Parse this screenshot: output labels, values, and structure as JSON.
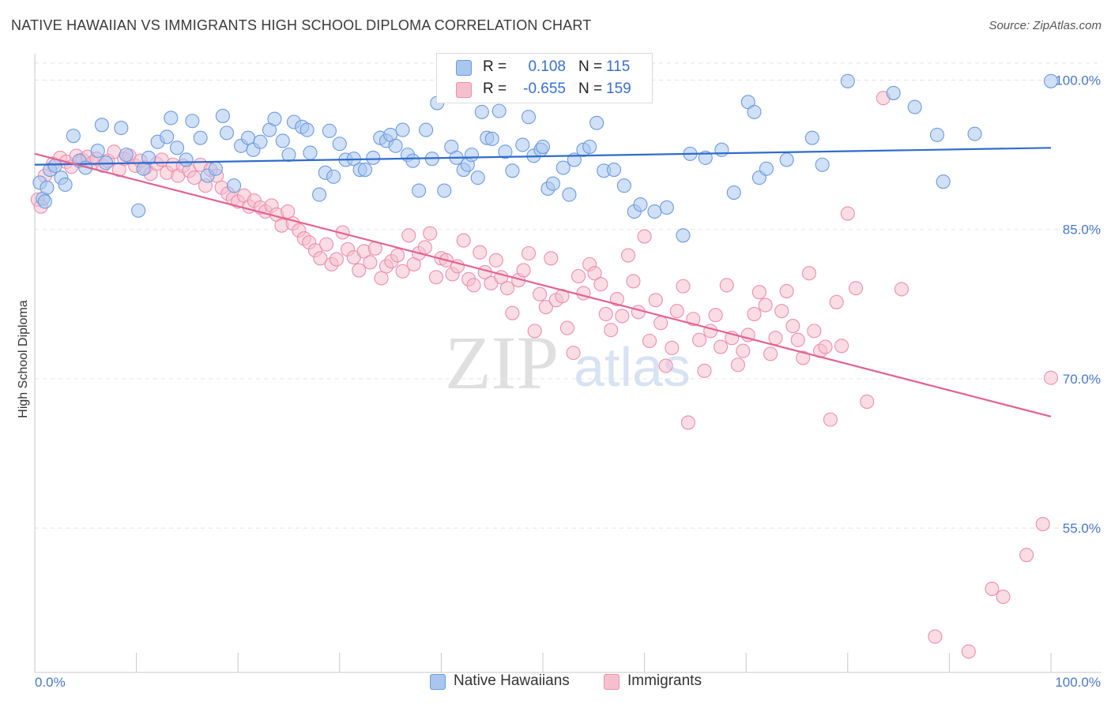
{
  "header": {
    "title": "NATIVE HAWAIIAN VS IMMIGRANTS HIGH SCHOOL DIPLOMA CORRELATION CHART",
    "source": "Source: ZipAtlas.com"
  },
  "watermark": {
    "zip": "ZIP",
    "atlas": "atlas"
  },
  "legend_top": {
    "rows": [
      {
        "r_key": "R =",
        "r_value": "0.108",
        "n_key": "N =",
        "n_value": "115"
      },
      {
        "r_key": "R =",
        "r_value": "-0.655",
        "n_key": "N =",
        "n_value": "159"
      }
    ]
  },
  "legend_bottom": {
    "items": [
      "Native Hawaiians",
      "Immigrants"
    ]
  },
  "colors": {
    "blue_fill": "#a9c6ee",
    "blue_stroke": "#6d9be0",
    "blue_line": "#2f6ccc",
    "pink_fill": "#f6bfd0",
    "pink_stroke": "#ec8fae",
    "pink_line": "#e2638f",
    "tick_label": "#4a78c4",
    "grid": "#e3e3e3"
  },
  "chart_data": {
    "type": "scatter",
    "title": "NATIVE HAWAIIAN VS IMMIGRANTS HIGH SCHOOL DIPLOMA CORRELATION CHART",
    "xlabel": "",
    "ylabel": "High School Diploma",
    "xlim": [
      0,
      100
    ],
    "ylim": [
      40.5,
      102.5
    ],
    "x_tick_labels": [
      "0.0%",
      "100.0%"
    ],
    "y_ticks": [
      100,
      85,
      70,
      55
    ],
    "y_tick_labels": [
      "100.0%",
      "85.0%",
      "70.0%",
      "55.0%"
    ],
    "grid": "horizontal dashed",
    "legend": "top-center and bottom",
    "series": [
      {
        "name": "Native Hawaiians",
        "r": 0.108,
        "n": 115,
        "trend": {
          "x": [
            0,
            100
          ],
          "y": [
            91.5,
            93.2
          ]
        },
        "points": [
          [
            0.5,
            89.7
          ],
          [
            0.8,
            88.1
          ],
          [
            1.0,
            87.8
          ],
          [
            1.2,
            89.2
          ],
          [
            1.5,
            91.0
          ],
          [
            2.0,
            91.4
          ],
          [
            2.6,
            90.2
          ],
          [
            3.0,
            89.5
          ],
          [
            3.8,
            94.4
          ],
          [
            4.4,
            91.9
          ],
          [
            5.0,
            91.2
          ],
          [
            6.2,
            92.9
          ],
          [
            6.6,
            95.5
          ],
          [
            7.0,
            91.7
          ],
          [
            8.5,
            95.2
          ],
          [
            9.0,
            92.5
          ],
          [
            10.2,
            86.9
          ],
          [
            10.7,
            91.1
          ],
          [
            11.2,
            92.2
          ],
          [
            12.1,
            93.8
          ],
          [
            13.0,
            94.3
          ],
          [
            13.4,
            96.2
          ],
          [
            14.0,
            93.2
          ],
          [
            14.9,
            92.0
          ],
          [
            15.5,
            95.9
          ],
          [
            16.3,
            94.2
          ],
          [
            17.0,
            90.4
          ],
          [
            17.8,
            91.1
          ],
          [
            18.5,
            96.4
          ],
          [
            18.9,
            94.7
          ],
          [
            19.6,
            89.4
          ],
          [
            20.3,
            93.4
          ],
          [
            21.0,
            94.2
          ],
          [
            21.5,
            93.0
          ],
          [
            22.2,
            93.8
          ],
          [
            23.1,
            95.0
          ],
          [
            23.6,
            96.1
          ],
          [
            24.4,
            93.9
          ],
          [
            25.0,
            92.5
          ],
          [
            25.5,
            95.8
          ],
          [
            26.3,
            95.3
          ],
          [
            26.8,
            95.0
          ],
          [
            27.1,
            92.7
          ],
          [
            28.0,
            88.5
          ],
          [
            28.6,
            90.7
          ],
          [
            29.0,
            94.9
          ],
          [
            29.4,
            90.3
          ],
          [
            30.0,
            93.6
          ],
          [
            30.6,
            92.0
          ],
          [
            31.4,
            92.1
          ],
          [
            32.0,
            91.0
          ],
          [
            32.5,
            91.0
          ],
          [
            33.3,
            92.2
          ],
          [
            34.0,
            94.2
          ],
          [
            34.6,
            93.9
          ],
          [
            35.0,
            94.5
          ],
          [
            35.5,
            93.4
          ],
          [
            36.2,
            95.0
          ],
          [
            36.7,
            92.5
          ],
          [
            37.2,
            91.9
          ],
          [
            37.8,
            88.9
          ],
          [
            38.5,
            95.0
          ],
          [
            39.1,
            92.1
          ],
          [
            39.6,
            97.7
          ],
          [
            40.3,
            88.9
          ],
          [
            41.0,
            93.3
          ],
          [
            41.5,
            92.2
          ],
          [
            42.2,
            91.0
          ],
          [
            42.6,
            91.5
          ],
          [
            43.0,
            92.5
          ],
          [
            43.6,
            90.2
          ],
          [
            44.0,
            96.8
          ],
          [
            44.5,
            94.2
          ],
          [
            45.0,
            94.1
          ],
          [
            45.7,
            96.9
          ],
          [
            46.3,
            92.8
          ],
          [
            47.0,
            90.9
          ],
          [
            48.0,
            93.5
          ],
          [
            48.6,
            96.3
          ],
          [
            49.1,
            92.4
          ],
          [
            49.8,
            93.0
          ],
          [
            50.0,
            93.3
          ],
          [
            50.5,
            89.1
          ],
          [
            51.0,
            89.6
          ],
          [
            52.0,
            91.2
          ],
          [
            52.6,
            88.5
          ],
          [
            53.1,
            92.0
          ],
          [
            54.0,
            93.0
          ],
          [
            54.6,
            93.3
          ],
          [
            55.3,
            95.7
          ],
          [
            56.0,
            90.9
          ],
          [
            57.0,
            91.0
          ],
          [
            58.0,
            89.4
          ],
          [
            59.0,
            86.8
          ],
          [
            59.6,
            87.5
          ],
          [
            61.0,
            86.8
          ],
          [
            62.2,
            87.2
          ],
          [
            63.8,
            84.4
          ],
          [
            64.5,
            92.6
          ],
          [
            66.0,
            92.2
          ],
          [
            67.6,
            93.0
          ],
          [
            68.8,
            88.7
          ],
          [
            70.2,
            97.8
          ],
          [
            70.8,
            96.8
          ],
          [
            71.3,
            90.2
          ],
          [
            72.0,
            91.1
          ],
          [
            74.0,
            92.0
          ],
          [
            76.5,
            94.2
          ],
          [
            77.5,
            91.5
          ],
          [
            80.0,
            99.9
          ],
          [
            84.5,
            98.7
          ],
          [
            86.6,
            97.3
          ],
          [
            88.8,
            94.5
          ],
          [
            89.4,
            89.8
          ],
          [
            92.5,
            94.6
          ],
          [
            100.0,
            99.9
          ]
        ]
      },
      {
        "name": "Immigrants",
        "r": -0.655,
        "n": 159,
        "trend": {
          "x": [
            0,
            100
          ],
          "y": [
            92.6,
            66.2
          ]
        },
        "points": [
          [
            0.3,
            88.0
          ],
          [
            0.6,
            87.3
          ],
          [
            1.0,
            90.4
          ],
          [
            1.8,
            91.6
          ],
          [
            2.5,
            92.2
          ],
          [
            3.1,
            91.8
          ],
          [
            3.6,
            91.3
          ],
          [
            4.1,
            92.4
          ],
          [
            4.7,
            92.0
          ],
          [
            5.2,
            92.3
          ],
          [
            5.7,
            91.7
          ],
          [
            6.1,
            92.1
          ],
          [
            6.7,
            91.4
          ],
          [
            7.2,
            91.9
          ],
          [
            7.8,
            92.8
          ],
          [
            8.3,
            91.0
          ],
          [
            8.8,
            92.1
          ],
          [
            9.3,
            92.4
          ],
          [
            9.9,
            91.4
          ],
          [
            10.4,
            91.9
          ],
          [
            10.9,
            91.2
          ],
          [
            11.4,
            90.6
          ],
          [
            12.0,
            91.6
          ],
          [
            12.5,
            92.0
          ],
          [
            13.0,
            90.7
          ],
          [
            13.6,
            91.5
          ],
          [
            14.1,
            90.4
          ],
          [
            14.6,
            91.4
          ],
          [
            15.2,
            90.9
          ],
          [
            15.7,
            90.2
          ],
          [
            16.3,
            91.5
          ],
          [
            16.8,
            89.4
          ],
          [
            17.3,
            91.0
          ],
          [
            17.9,
            90.4
          ],
          [
            18.4,
            89.2
          ],
          [
            19.0,
            88.6
          ],
          [
            19.5,
            88.1
          ],
          [
            20.0,
            87.8
          ],
          [
            20.6,
            88.4
          ],
          [
            21.1,
            87.3
          ],
          [
            21.6,
            87.9
          ],
          [
            22.2,
            87.2
          ],
          [
            22.7,
            86.8
          ],
          [
            23.3,
            87.4
          ],
          [
            23.8,
            86.5
          ],
          [
            24.3,
            85.4
          ],
          [
            24.9,
            86.8
          ],
          [
            25.4,
            85.6
          ],
          [
            26.0,
            84.9
          ],
          [
            26.5,
            84.1
          ],
          [
            27.0,
            83.7
          ],
          [
            27.6,
            82.9
          ],
          [
            28.1,
            82.1
          ],
          [
            28.7,
            83.5
          ],
          [
            29.2,
            81.5
          ],
          [
            29.7,
            82.0
          ],
          [
            30.3,
            84.7
          ],
          [
            30.8,
            83.0
          ],
          [
            31.4,
            82.2
          ],
          [
            31.9,
            80.9
          ],
          [
            32.4,
            82.8
          ],
          [
            33.0,
            81.7
          ],
          [
            33.5,
            83.1
          ],
          [
            34.1,
            80.1
          ],
          [
            34.6,
            81.3
          ],
          [
            35.1,
            81.8
          ],
          [
            35.7,
            82.4
          ],
          [
            36.2,
            80.8
          ],
          [
            36.8,
            84.4
          ],
          [
            37.3,
            81.5
          ],
          [
            37.8,
            82.6
          ],
          [
            38.4,
            83.2
          ],
          [
            38.9,
            84.6
          ],
          [
            39.5,
            80.2
          ],
          [
            40.0,
            82.1
          ],
          [
            40.5,
            81.9
          ],
          [
            41.1,
            80.5
          ],
          [
            41.6,
            81.3
          ],
          [
            42.2,
            83.9
          ],
          [
            42.7,
            80.0
          ],
          [
            43.2,
            79.4
          ],
          [
            43.8,
            82.7
          ],
          [
            44.3,
            80.7
          ],
          [
            44.9,
            79.6
          ],
          [
            45.4,
            81.9
          ],
          [
            45.9,
            80.2
          ],
          [
            46.5,
            79.1
          ],
          [
            47.0,
            76.6
          ],
          [
            47.6,
            79.9
          ],
          [
            48.1,
            80.9
          ],
          [
            48.6,
            82.6
          ],
          [
            49.2,
            74.8
          ],
          [
            49.7,
            78.5
          ],
          [
            50.3,
            77.2
          ],
          [
            50.8,
            82.1
          ],
          [
            51.3,
            77.9
          ],
          [
            51.9,
            78.3
          ],
          [
            52.4,
            75.1
          ],
          [
            53.0,
            72.6
          ],
          [
            53.5,
            80.3
          ],
          [
            54.0,
            78.6
          ],
          [
            54.6,
            81.5
          ],
          [
            55.1,
            80.6
          ],
          [
            55.7,
            79.5
          ],
          [
            56.2,
            76.5
          ],
          [
            56.7,
            74.9
          ],
          [
            57.3,
            78.0
          ],
          [
            57.8,
            76.3
          ],
          [
            58.4,
            82.4
          ],
          [
            58.9,
            79.8
          ],
          [
            59.4,
            76.7
          ],
          [
            60.0,
            84.3
          ],
          [
            60.5,
            73.8
          ],
          [
            61.1,
            77.9
          ],
          [
            61.6,
            75.6
          ],
          [
            62.1,
            71.3
          ],
          [
            62.7,
            73.1
          ],
          [
            63.2,
            76.8
          ],
          [
            63.8,
            79.3
          ],
          [
            64.3,
            65.6
          ],
          [
            64.8,
            76.0
          ],
          [
            65.4,
            73.9
          ],
          [
            65.9,
            70.8
          ],
          [
            66.5,
            74.8
          ],
          [
            67.0,
            76.4
          ],
          [
            67.5,
            73.2
          ],
          [
            68.1,
            79.4
          ],
          [
            68.6,
            74.1
          ],
          [
            69.2,
            71.4
          ],
          [
            69.7,
            72.8
          ],
          [
            70.2,
            74.4
          ],
          [
            70.8,
            76.5
          ],
          [
            71.3,
            78.7
          ],
          [
            71.9,
            77.4
          ],
          [
            72.4,
            72.5
          ],
          [
            72.9,
            74.1
          ],
          [
            73.5,
            76.8
          ],
          [
            74.0,
            78.8
          ],
          [
            74.6,
            75.3
          ],
          [
            75.1,
            73.9
          ],
          [
            75.6,
            72.1
          ],
          [
            76.2,
            80.6
          ],
          [
            76.7,
            74.8
          ],
          [
            77.3,
            72.8
          ],
          [
            77.8,
            73.2
          ],
          [
            78.3,
            65.9
          ],
          [
            78.9,
            77.7
          ],
          [
            79.4,
            73.3
          ],
          [
            80.0,
            86.6
          ],
          [
            80.8,
            79.1
          ],
          [
            81.9,
            67.7
          ],
          [
            83.5,
            98.2
          ],
          [
            85.3,
            79.0
          ],
          [
            88.6,
            44.1
          ],
          [
            91.9,
            42.6
          ],
          [
            94.2,
            48.9
          ],
          [
            95.3,
            48.1
          ],
          [
            97.6,
            52.3
          ],
          [
            99.2,
            55.4
          ],
          [
            100.0,
            70.1
          ]
        ]
      }
    ]
  }
}
